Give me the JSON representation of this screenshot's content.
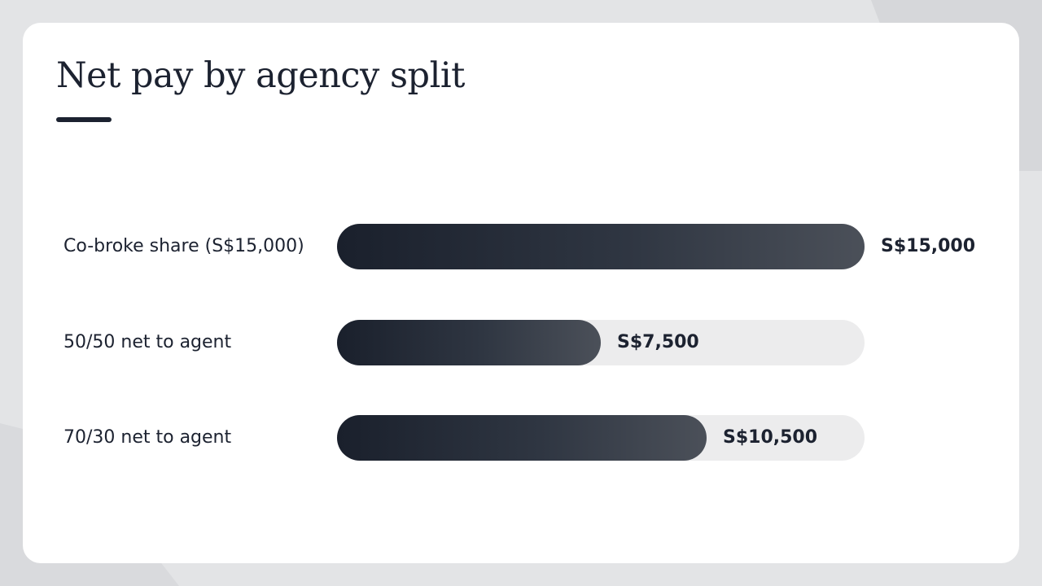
{
  "chart_data": {
    "type": "bar",
    "orientation": "horizontal",
    "title": "Net pay by agency split",
    "categories": [
      "Co-broke share (S$15,000)",
      "50/50 net to agent",
      "70/30 net to agent"
    ],
    "values": [
      15000,
      7500,
      10500
    ],
    "value_labels": [
      "S$15,000",
      "S$7,500",
      "S$10,500"
    ],
    "xlim": [
      0,
      15000
    ],
    "grid": false,
    "colors": {
      "bar_start": "#1a202c",
      "bar_end": "#4b5059",
      "track": "#ececed",
      "text": "#1c2230"
    }
  }
}
